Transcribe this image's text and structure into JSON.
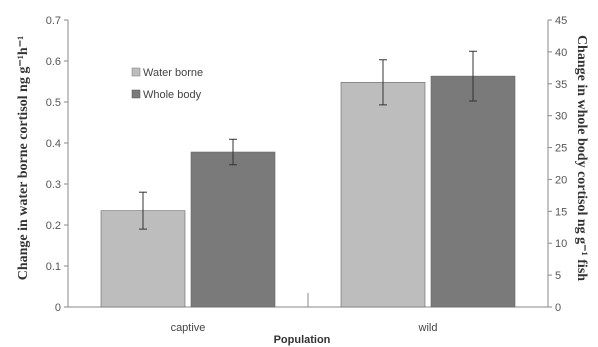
{
  "chart_data": {
    "type": "bar",
    "categories": [
      "captive",
      "wild"
    ],
    "xlabel": "Population",
    "ylabel_left": "Change in water borne cortisol ng g⁻¹h⁻¹",
    "ylabel_right": "Change in whole body cortisol ng g⁻¹ fish",
    "ylim_left": [
      0,
      0.7
    ],
    "yticks_left": [
      "0",
      "0.1",
      "0.2",
      "0.3",
      "0.4",
      "0.5",
      "0.6",
      "0.7"
    ],
    "ylim_right": [
      0,
      45
    ],
    "yticks_right": [
      "0",
      "5",
      "10",
      "15",
      "20",
      "25",
      "30",
      "35",
      "40",
      "45"
    ],
    "legend_position": "top-left",
    "series": [
      {
        "name": "Water borne",
        "axis": "left",
        "color": "#bdbdbd",
        "values": [
          0.235,
          0.548
        ],
        "errors": [
          0.045,
          0.055
        ]
      },
      {
        "name": "Whole body",
        "axis": "right",
        "color": "#7a7a7a",
        "values": [
          24.3,
          36.2
        ],
        "errors": [
          2.0,
          3.9
        ]
      }
    ]
  }
}
